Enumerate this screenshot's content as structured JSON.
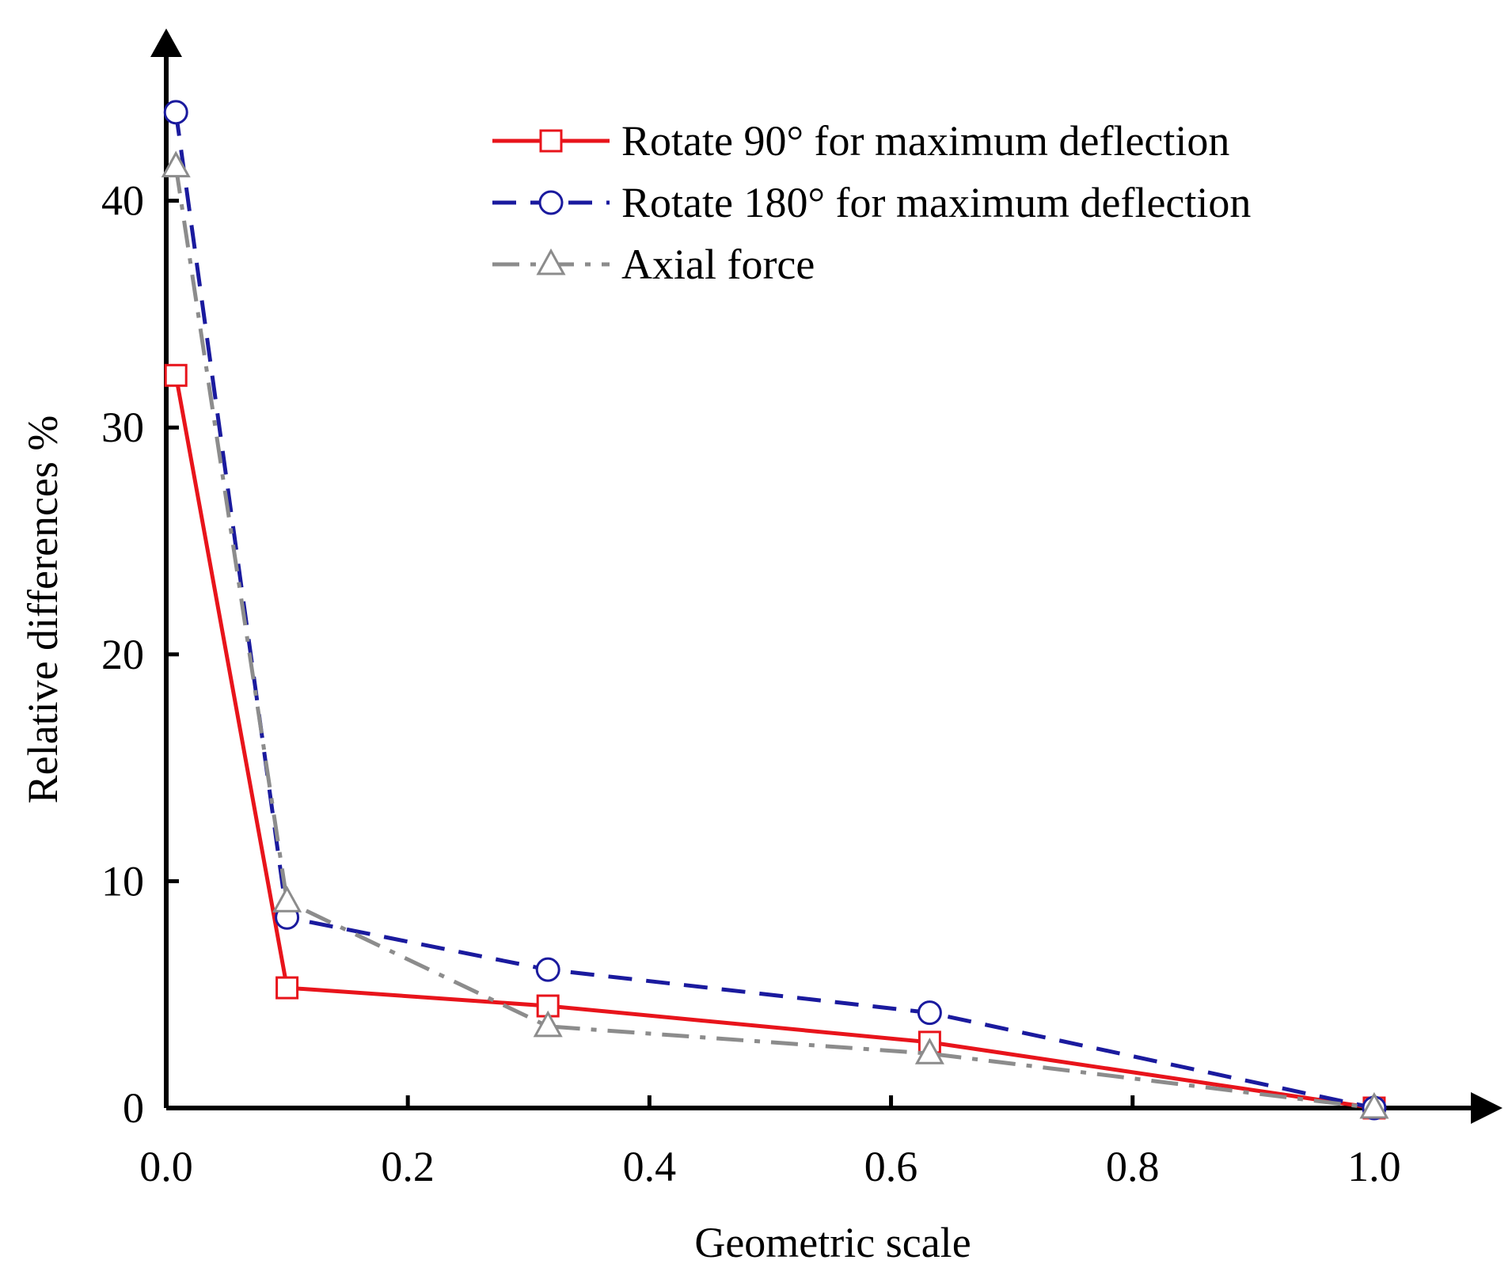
{
  "chart_data": {
    "type": "line",
    "title": "",
    "xlabel": "Geometric scale",
    "ylabel": "Relative differences %",
    "xlim": [
      0.0,
      1.08
    ],
    "ylim": [
      0,
      47
    ],
    "xticks": [
      0.0,
      0.2,
      0.4,
      0.6,
      0.8,
      1.0
    ],
    "xtick_labels": [
      "0.0",
      "0.2",
      "0.4",
      "0.6",
      "0.8",
      "1.0"
    ],
    "yticks": [
      0,
      10,
      20,
      30,
      40
    ],
    "ytick_labels": [
      "0",
      "10",
      "20",
      "30",
      "40"
    ],
    "grid": false,
    "legend_position": "top-right",
    "series": [
      {
        "name": "Rotate 90° for maximum deflection",
        "color": "#e8141b",
        "marker": "square",
        "line_style": "solid",
        "x": [
          0.008,
          0.1,
          0.316,
          0.632,
          1.0
        ],
        "y": [
          32.3,
          5.3,
          4.5,
          2.9,
          0.0
        ]
      },
      {
        "name": "Rotate 180° for maximum deflection",
        "color": "#1a1a9e",
        "marker": "circle",
        "line_style": "dashed",
        "x": [
          0.008,
          0.1,
          0.316,
          0.632,
          1.0
        ],
        "y": [
          43.9,
          8.4,
          6.1,
          4.2,
          0.0
        ]
      },
      {
        "name": "Axial force",
        "color": "#8c8c8c",
        "marker": "triangle",
        "line_style": "dashdot",
        "x": [
          0.008,
          0.1,
          0.316,
          0.632,
          1.0
        ],
        "y": [
          41.5,
          9.1,
          3.6,
          2.4,
          0.0
        ]
      }
    ]
  }
}
